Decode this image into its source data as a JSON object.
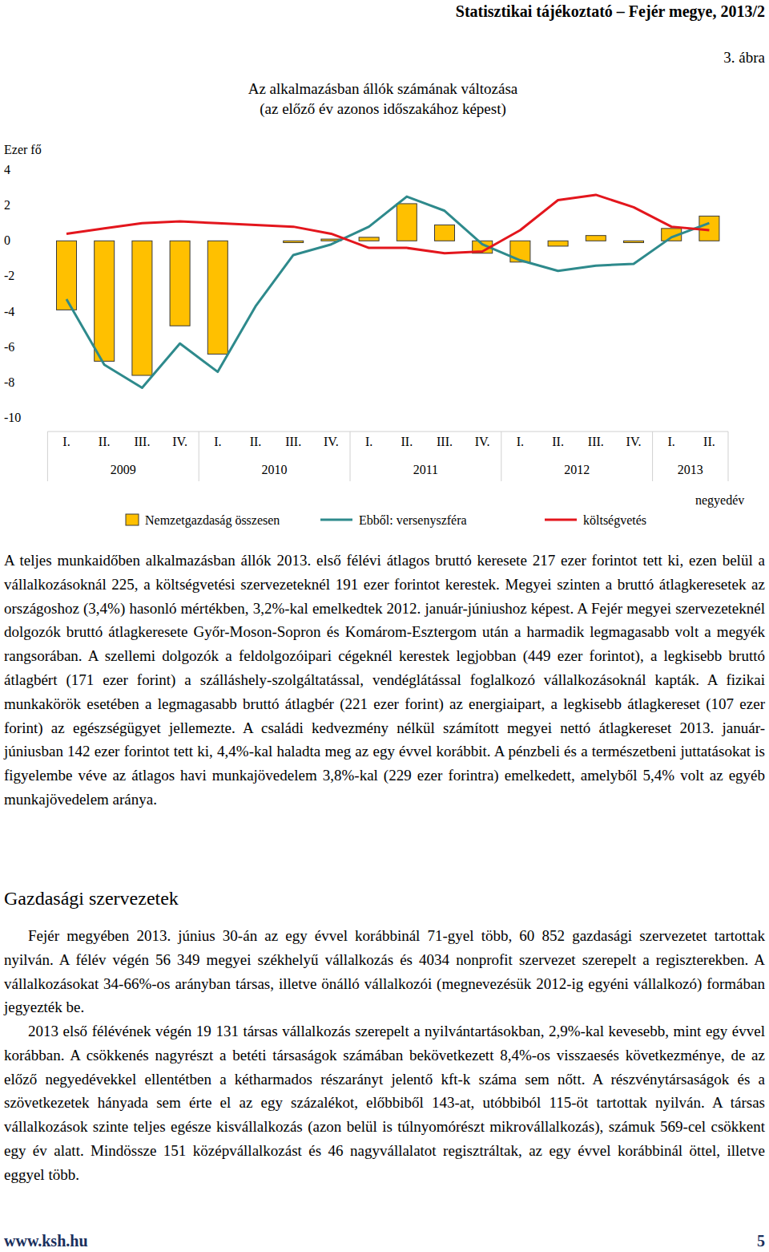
{
  "header": {
    "title": "Statisztikai tájékoztató – Fejér megye, 2013/2",
    "figure_label": "3. ábra"
  },
  "chart_data": {
    "type": "bar",
    "title": "Az alkalmazásban állók számának változása",
    "subtitle": "(az előző év azonos időszakához képest)",
    "y_label": "Ezer fő",
    "x_label": "negyedév",
    "categories": [
      "I.",
      "II.",
      "III.",
      "IV.",
      "I.",
      "II.",
      "III.",
      "IV.",
      "I.",
      "II.",
      "III.",
      "IV.",
      "I.",
      "II.",
      "III.",
      "IV.",
      "I.",
      "II."
    ],
    "category_groups": [
      "2009",
      "2010",
      "2011",
      "2012",
      "2013"
    ],
    "series": [
      {
        "name": "Nemzetgazdaság összesen",
        "type": "bar",
        "color": "#ffc000",
        "values": [
          -3.9,
          -6.8,
          -7.6,
          -4.8,
          -6.4,
          0.0,
          -0.1,
          0.1,
          0.2,
          2.1,
          0.9,
          -0.7,
          -1.2,
          -0.3,
          0.3,
          -0.1,
          0.7,
          1.4
        ]
      },
      {
        "name": "Ebből: versenyszféra",
        "type": "line",
        "color": "#2e8a8c",
        "values": [
          -3.3,
          -7.0,
          -8.3,
          -5.8,
          -7.4,
          -3.7,
          -0.8,
          -0.2,
          0.8,
          2.5,
          1.7,
          -0.2,
          -1.1,
          -1.7,
          -1.4,
          -1.3,
          0.2,
          1.0
        ]
      },
      {
        "name": "költségvetés",
        "type": "line",
        "color": "#e3161d",
        "values": [
          0.4,
          0.7,
          1.0,
          1.1,
          1.0,
          0.9,
          0.8,
          0.4,
          -0.4,
          -0.4,
          -0.7,
          -0.6,
          0.6,
          2.3,
          2.6,
          1.9,
          0.8,
          0.6
        ]
      }
    ],
    "ylim": [
      -10,
      4
    ],
    "yticks": [
      4,
      2,
      0,
      -2,
      -4,
      -6,
      -8,
      -10
    ],
    "grid": false,
    "legend": "bottom"
  },
  "paragraphs": [
    "A teljes munkaidőben alkalmazásban állók 2013. első félévi átlagos bruttó keresete 217 ezer forintot tett ki, ezen belül a vállalkozásoknál 225, a költségvetési szervezeteknél 191 ezer forintot kerestek. Megyei szinten a bruttó átlagkeresetek az országoshoz (3,4%) hasonló mértékben, 3,2%-kal emelkedtek 2012. január-júniushoz képest. A Fejér megyei szervezeteknél dolgozók bruttó átlagkeresete Győr-Moson-Sopron és Komárom-Esztergom után a harmadik legmagasabb volt a megyék rangsorában. A szellemi dolgozók a feldolgozóipari cégeknél kerestek legjobban (449 ezer forintot), a legkisebb bruttó átlagbért (171 ezer forint) a szálláshely-szolgáltatással, vendéglátással foglalkozó vállalkozásoknál kapták. A fizikai munkakörök esetében a legmagasabb bruttó átlagbér (221 ezer forint) az energiaipart, a legkisebb átlagkereset (107 ezer forint) az egészségügyet jellemezte. A családi kedvezmény nélkül számított megyei nettó átlagkereset 2013. január-júniusban 142 ezer forintot tett ki, 4,4%-kal haladta meg az egy évvel korábbit. A pénzbeli és a természetbeni juttatásokat is figyelembe véve az átlagos havi munkajövedelem 3,8%-kal (229 ezer forintra) emelkedett, amelyből 5,4% volt az egyéb munkajövedelem aránya."
  ],
  "section": {
    "heading": "Gazdasági szervezetek",
    "paragraphs": [
      "Fejér megyében 2013. június 30-án az egy évvel korábbinál 71-gyel több, 60 852 gazdasági szervezetet tartottak nyilván. A félév végén 56 349 megyei székhelyű vállalkozás és 4034 nonprofit szervezet szerepelt a regiszterekben. A vállalkozásokat 34-66%-os arányban társas, illetve önálló vállalkozói (megnevezésük 2012-ig egyéni vállalkozó) formában jegyezték be.",
      "2013 első félévének végén 19 131 társas vállalkozás szerepelt a nyilvántartásokban, 2,9%-kal kevesebb, mint egy évvel korábban. A csökkenés nagyrészt a betéti társaságok számában bekövetkezett 8,4%-os visszaesés következménye, de az előző negyedévekkel ellentétben a kétharmados részarányt jelentő kft-k száma sem nőtt. A részvénytársaságok és a szövetkezetek hányada sem érte el az egy százalékot, előbbiből 143-at, utóbbiból 115-öt tartottak nyilván. A társas vállalkozások szinte teljes egésze kisvállalkozás (azon belül is túlnyomórészt mikrovállalkozás), számuk 569-cel csökkent egy év alatt. Mindössze 151 középvállalkozást és 46 nagyvállalatot regisztráltak, az egy évvel korábbinál öttel, illetve eggyel több."
    ]
  },
  "footer": {
    "url": "www.ksh.hu",
    "page": "5"
  }
}
